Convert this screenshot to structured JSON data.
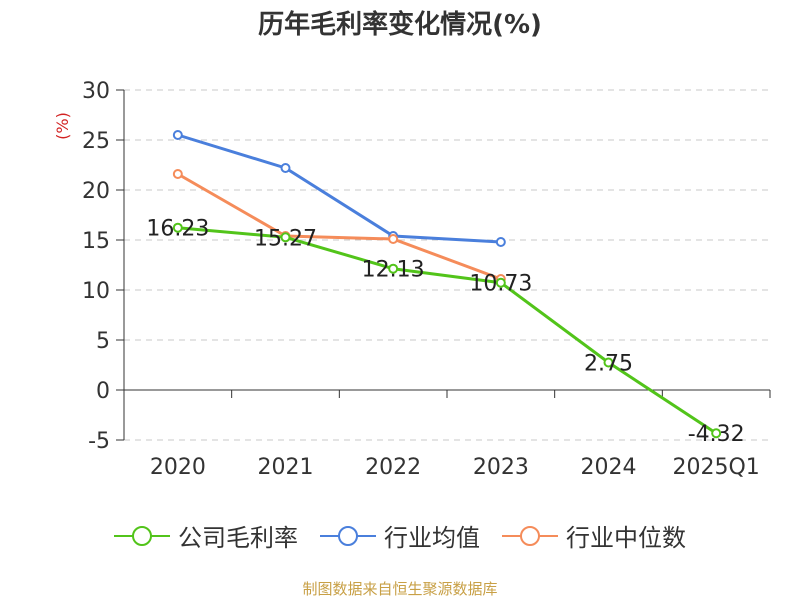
{
  "chart_data": {
    "type": "line",
    "title": "历年毛利率变化情况(%)",
    "ylabel": "(%)",
    "xlabel": "",
    "categories": [
      "2020",
      "2021",
      "2022",
      "2023",
      "2024",
      "2025Q1"
    ],
    "ylim": [
      -5,
      30
    ],
    "yticks": [
      30,
      25,
      20,
      15,
      10,
      5,
      0,
      -5
    ],
    "grid": true,
    "legend_position": "bottom",
    "series": [
      {
        "name": "公司毛利率",
        "color": "#52c41a",
        "values": [
          16.23,
          15.27,
          12.13,
          10.73,
          2.75,
          -4.32
        ],
        "labels": [
          "16.23",
          "15.27",
          "12.13",
          "10.73",
          "2.75",
          "-4.32"
        ]
      },
      {
        "name": "行业均值",
        "color": "#4a7fdc",
        "values": [
          25.5,
          22.2,
          15.4,
          14.8,
          null,
          null
        ]
      },
      {
        "name": "行业中位数",
        "color": "#f58c5a",
        "values": [
          21.6,
          15.4,
          15.1,
          11.1,
          null,
          null
        ]
      }
    ]
  },
  "footer": {
    "source": "制图数据来自恒生聚源数据库"
  }
}
